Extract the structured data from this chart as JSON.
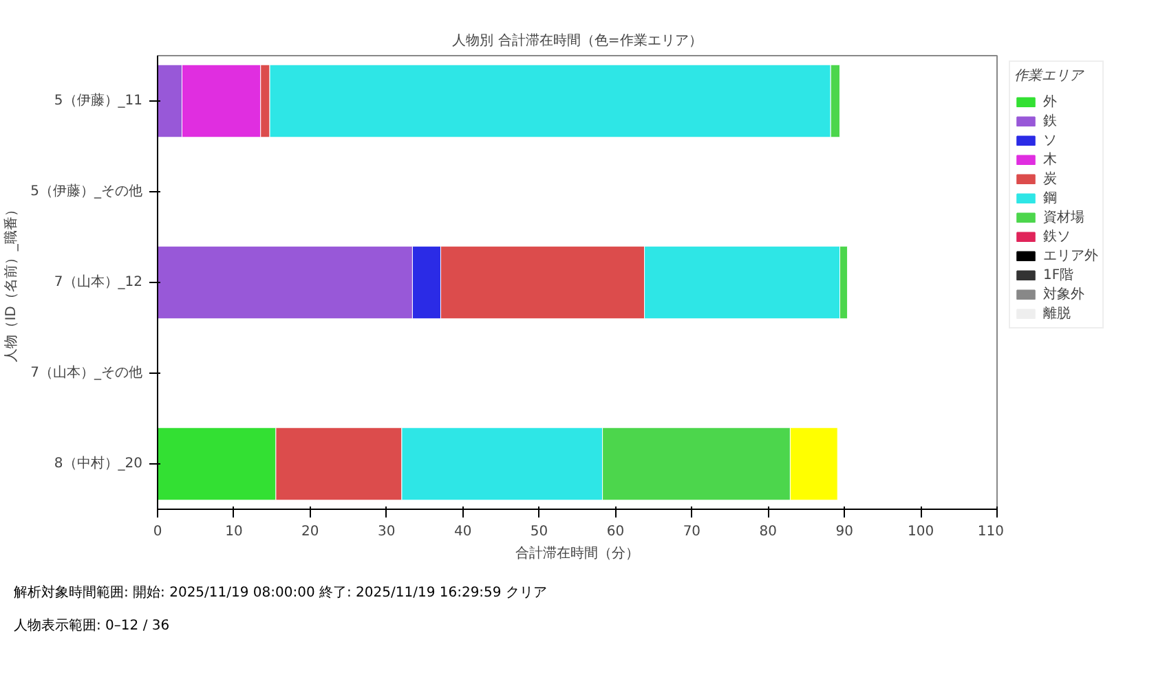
{
  "chart_data": {
    "type": "bar",
    "orientation": "horizontal",
    "stacked": true,
    "title": "人物別 合計滞在時間（色=作業エリア）",
    "xlabel": "合計滞在時間（分）",
    "ylabel": "人物（ID（名前）_職番）",
    "legend_title": "作業エリア",
    "categories": [
      "5（伊藤）_11",
      "5（伊藤）_その他",
      "7（山本）_12",
      "7（山本）_その他",
      "8（中村）_20"
    ],
    "xlim": [
      0,
      110
    ],
    "xticks": [
      0,
      10,
      20,
      30,
      40,
      50,
      60,
      70,
      80,
      90,
      100,
      110
    ],
    "grid": false,
    "legend": "right",
    "series": [
      {
        "name": "外",
        "color": "#33e033",
        "values": [
          null,
          null,
          null,
          null,
          15.5
        ]
      },
      {
        "name": "鉄",
        "color": "#9858d8",
        "values": [
          3.2,
          null,
          33.4,
          null,
          null
        ]
      },
      {
        "name": "ソ",
        "color": "#2b2be6",
        "values": [
          null,
          null,
          3.7,
          null,
          null
        ]
      },
      {
        "name": "木",
        "color": "#e02ee0",
        "values": [
          10.3,
          null,
          null,
          null,
          null
        ]
      },
      {
        "name": "炭",
        "color": "#dc4c4c",
        "values": [
          1.2,
          null,
          26.7,
          null,
          16.5
        ]
      },
      {
        "name": "鋼",
        "color": "#2ee6e6",
        "values": [
          73.5,
          null,
          25.6,
          null,
          26.3
        ]
      },
      {
        "name": "資材場",
        "color": "#4cd64c",
        "values": [
          1.2,
          null,
          1.0,
          null,
          24.6
        ]
      },
      {
        "color": "#ffff00",
        "values": [
          null,
          null,
          null,
          null,
          6.2
        ]
      },
      {
        "name": "鉄ソ",
        "color": "#e0245a",
        "values": [
          null,
          null,
          null,
          null,
          null
        ]
      },
      {
        "name": "エリア外",
        "color": "#000000",
        "values": [
          null,
          null,
          null,
          null,
          null
        ]
      },
      {
        "name": "1F階",
        "color": "#333333",
        "values": [
          null,
          null,
          null,
          null,
          null
        ]
      },
      {
        "name": "対象外",
        "color": "#888888",
        "values": [
          null,
          null,
          null,
          null,
          null
        ]
      },
      {
        "name": "離脱",
        "color": "#eeeeee",
        "values": [
          null,
          null,
          null,
          null,
          null
        ]
      }
    ],
    "annotations": [
      "解析対象時間範囲:  開始: 2025/11/19 08:00:00  終了: 2025/11/19 16:29:59  クリア",
      "人物表示範囲: 0–12 / 36"
    ]
  }
}
